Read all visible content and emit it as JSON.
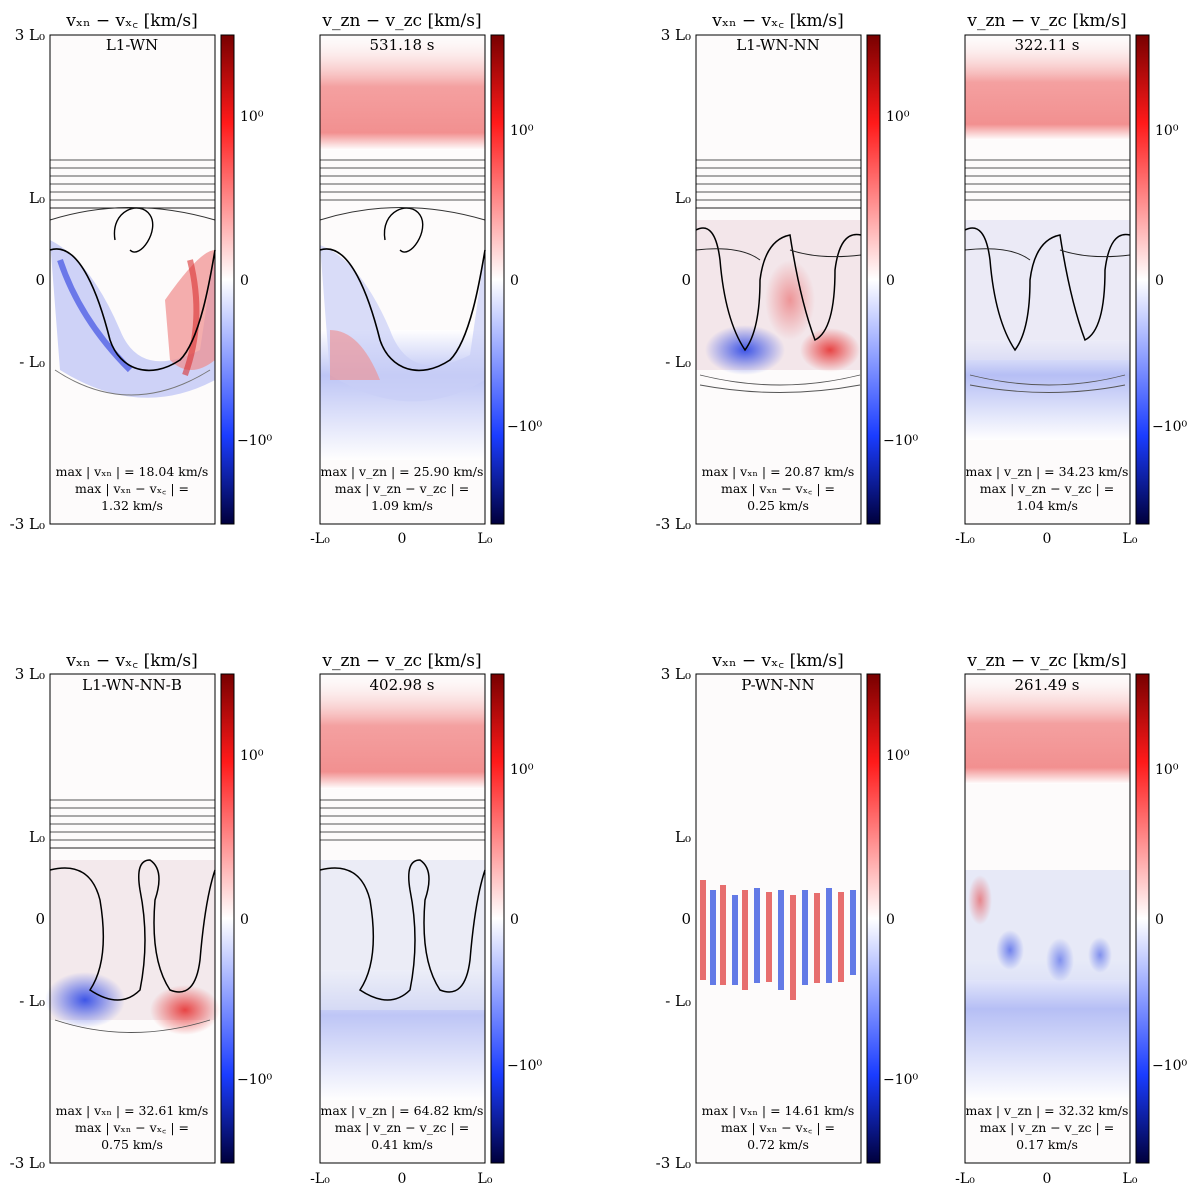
{
  "chart_data": {
    "type": "heatmap",
    "colormap": {
      "low": "#00003c",
      "mid": "#ffffff",
      "high": "#780000",
      "blue": "#1a3cff",
      "red": "#ff1a1a"
    },
    "colorbar": {
      "ticks": [
        "10⁰",
        "0",
        "−10⁰"
      ]
    },
    "y_ticks": [
      "3 L₀",
      "L₀",
      "0",
      "- L₀",
      "-3 L₀"
    ],
    "x_ticks": [
      "-L₀",
      "0",
      "L₀"
    ],
    "panels": [
      {
        "run": "L1-WN",
        "time": "531.18 s",
        "left_title": "vₓₙ − vₓ꜀ [km/s]",
        "right_title": "v_zn − v_zc [km/s]",
        "left_stats": [
          "max | vₓₙ | = 18.04 km/s",
          "max | vₓₙ − vₓ꜀ | =",
          "1.32 km/s"
        ],
        "right_stats": [
          "max | v_zn | = 25.90 km/s",
          "max | v_zn − v_zc | =",
          "1.09 km/s"
        ],
        "stats": {
          "max_vxn_kms": 18.04,
          "max_dvx_kms": 1.32,
          "max_vzn_kms": 25.9,
          "max_dvz_kms": 1.09
        }
      },
      {
        "run": "L1-WN-NN",
        "time": "322.11 s",
        "left_title": "vₓₙ − vₓ꜀ [km/s]",
        "right_title": "v_zn − v_zc [km/s]",
        "left_stats": [
          "max | vₓₙ | = 20.87 km/s",
          "max | vₓₙ − vₓ꜀ | =",
          "0.25 km/s"
        ],
        "right_stats": [
          "max | v_zn | = 34.23 km/s",
          "max | v_zn − v_zc | =",
          "1.04 km/s"
        ],
        "stats": {
          "max_vxn_kms": 20.87,
          "max_dvx_kms": 0.25,
          "max_vzn_kms": 34.23,
          "max_dvz_kms": 1.04
        }
      },
      {
        "run": "L1-WN-NN-B",
        "time": "402.98 s",
        "left_title": "vₓₙ − vₓ꜀ [km/s]",
        "right_title": "v_zn − v_zc [km/s]",
        "left_stats": [
          "max | vₓₙ | = 32.61 km/s",
          "max | vₓₙ − vₓ꜀ | =",
          "0.75 km/s"
        ],
        "right_stats": [
          "max | v_zn | = 64.82 km/s",
          "max | v_zn − v_zc | =",
          "0.41 km/s"
        ],
        "stats": {
          "max_vxn_kms": 32.61,
          "max_dvx_kms": 0.75,
          "max_vzn_kms": 64.82,
          "max_dvz_kms": 0.41
        }
      },
      {
        "run": "P-WN-NN",
        "time": "261.49 s",
        "left_title": "vₓₙ − vₓ꜀ [km/s]",
        "right_title": "v_zn − v_zc [km/s]",
        "left_stats": [
          "max | vₓₙ | = 14.61 km/s",
          "max | vₓₙ − vₓ꜀ | =",
          "0.72 km/s"
        ],
        "right_stats": [
          "max | v_zn | = 32.32 km/s",
          "max | v_zn − v_zc | =",
          "0.17 km/s"
        ],
        "stats": {
          "max_vxn_kms": 14.61,
          "max_dvx_kms": 0.72,
          "max_vzn_kms": 32.32,
          "max_dvz_kms": 0.17
        }
      }
    ]
  }
}
